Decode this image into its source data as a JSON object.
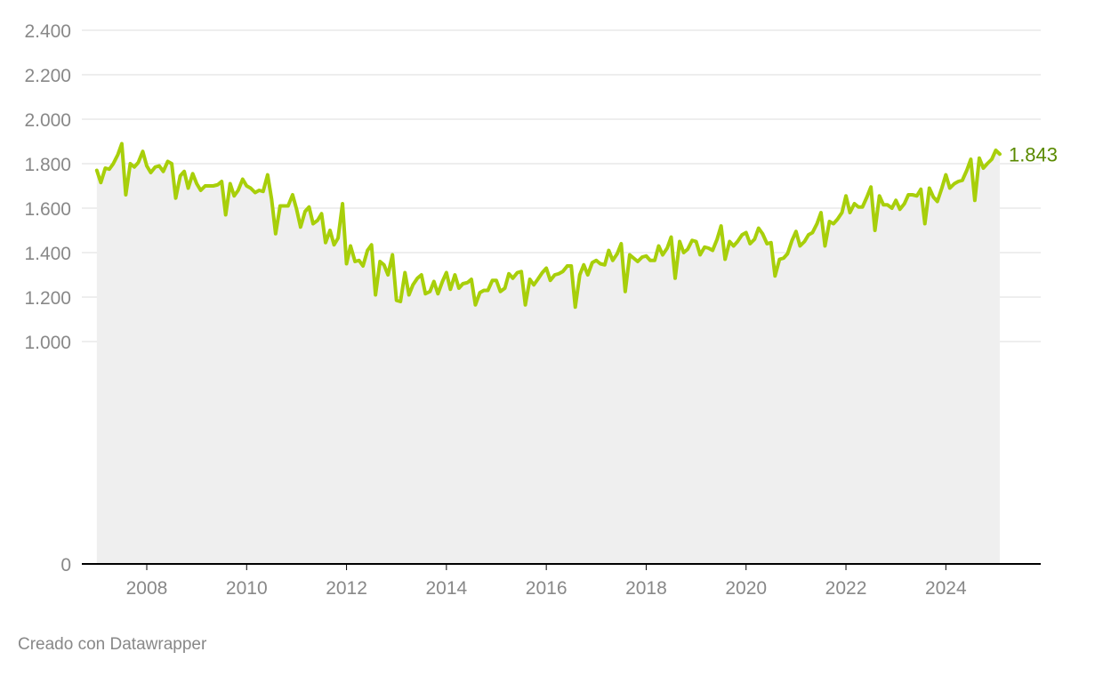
{
  "credit": "Creado con Datawrapper",
  "colors": {
    "line": "#a8cf0a",
    "area": "#efefef",
    "grid": "#dddddd",
    "axis": "#000000",
    "label": "#888888",
    "end_label": "#5a8a00"
  },
  "chart_data": {
    "type": "area",
    "title": "",
    "xlabel": "",
    "ylabel": "",
    "xlim": [
      2006.7,
      2025.9
    ],
    "ylim": [
      0,
      2400
    ],
    "y_ticks": [
      {
        "value": 0,
        "label": "0"
      },
      {
        "value": 1000,
        "label": "1.000"
      },
      {
        "value": 1200,
        "label": "1.200"
      },
      {
        "value": 1400,
        "label": "1.400"
      },
      {
        "value": 1600,
        "label": "1.600"
      },
      {
        "value": 1800,
        "label": "1.800"
      },
      {
        "value": 2000,
        "label": "2.000"
      },
      {
        "value": 2200,
        "label": "2.200"
      },
      {
        "value": 2400,
        "label": "2.400"
      }
    ],
    "x_ticks": [
      {
        "value": 2008,
        "label": "2008"
      },
      {
        "value": 2010,
        "label": "2010"
      },
      {
        "value": 2012,
        "label": "2012"
      },
      {
        "value": 2014,
        "label": "2014"
      },
      {
        "value": 2016,
        "label": "2016"
      },
      {
        "value": 2018,
        "label": "2018"
      },
      {
        "value": 2020,
        "label": "2020"
      },
      {
        "value": 2022,
        "label": "2022"
      },
      {
        "value": 2024,
        "label": "2024"
      }
    ],
    "grid": true,
    "last_value_label": "1.843",
    "series": [
      {
        "points": [
          [
            2007.0,
            1770
          ],
          [
            2007.08,
            1715
          ],
          [
            2007.17,
            1780
          ],
          [
            2007.25,
            1775
          ],
          [
            2007.33,
            1800
          ],
          [
            2007.42,
            1840
          ],
          [
            2007.5,
            1890
          ],
          [
            2007.58,
            1660
          ],
          [
            2007.67,
            1800
          ],
          [
            2007.75,
            1785
          ],
          [
            2007.83,
            1805
          ],
          [
            2007.92,
            1855
          ],
          [
            2008.0,
            1790
          ],
          [
            2008.08,
            1760
          ],
          [
            2008.17,
            1785
          ],
          [
            2008.25,
            1790
          ],
          [
            2008.33,
            1765
          ],
          [
            2008.42,
            1810
          ],
          [
            2008.5,
            1800
          ],
          [
            2008.58,
            1645
          ],
          [
            2008.67,
            1745
          ],
          [
            2008.75,
            1765
          ],
          [
            2008.83,
            1690
          ],
          [
            2008.92,
            1755
          ],
          [
            2009.0,
            1710
          ],
          [
            2009.08,
            1680
          ],
          [
            2009.17,
            1700
          ],
          [
            2009.25,
            1700
          ],
          [
            2009.33,
            1700
          ],
          [
            2009.42,
            1705
          ],
          [
            2009.5,
            1720
          ],
          [
            2009.58,
            1570
          ],
          [
            2009.67,
            1710
          ],
          [
            2009.75,
            1655
          ],
          [
            2009.83,
            1680
          ],
          [
            2009.92,
            1730
          ],
          [
            2010.0,
            1700
          ],
          [
            2010.08,
            1690
          ],
          [
            2010.17,
            1670
          ],
          [
            2010.25,
            1680
          ],
          [
            2010.33,
            1675
          ],
          [
            2010.42,
            1750
          ],
          [
            2010.5,
            1640
          ],
          [
            2010.58,
            1485
          ],
          [
            2010.67,
            1610
          ],
          [
            2010.75,
            1610
          ],
          [
            2010.83,
            1610
          ],
          [
            2010.92,
            1660
          ],
          [
            2011.0,
            1595
          ],
          [
            2011.08,
            1515
          ],
          [
            2011.17,
            1585
          ],
          [
            2011.25,
            1605
          ],
          [
            2011.33,
            1530
          ],
          [
            2011.42,
            1545
          ],
          [
            2011.5,
            1575
          ],
          [
            2011.58,
            1445
          ],
          [
            2011.67,
            1500
          ],
          [
            2011.75,
            1435
          ],
          [
            2011.83,
            1465
          ],
          [
            2011.92,
            1620
          ],
          [
            2012.0,
            1350
          ],
          [
            2012.08,
            1430
          ],
          [
            2012.17,
            1360
          ],
          [
            2012.25,
            1365
          ],
          [
            2012.33,
            1340
          ],
          [
            2012.42,
            1410
          ],
          [
            2012.5,
            1435
          ],
          [
            2012.58,
            1210
          ],
          [
            2012.67,
            1360
          ],
          [
            2012.75,
            1345
          ],
          [
            2012.83,
            1300
          ],
          [
            2012.92,
            1390
          ],
          [
            2013.0,
            1185
          ],
          [
            2013.08,
            1180
          ],
          [
            2013.17,
            1310
          ],
          [
            2013.25,
            1210
          ],
          [
            2013.33,
            1255
          ],
          [
            2013.42,
            1285
          ],
          [
            2013.5,
            1300
          ],
          [
            2013.58,
            1215
          ],
          [
            2013.67,
            1225
          ],
          [
            2013.75,
            1270
          ],
          [
            2013.83,
            1215
          ],
          [
            2013.92,
            1270
          ],
          [
            2014.0,
            1310
          ],
          [
            2014.08,
            1235
          ],
          [
            2014.17,
            1300
          ],
          [
            2014.25,
            1240
          ],
          [
            2014.33,
            1260
          ],
          [
            2014.42,
            1265
          ],
          [
            2014.5,
            1280
          ],
          [
            2014.58,
            1165
          ],
          [
            2014.67,
            1220
          ],
          [
            2014.75,
            1230
          ],
          [
            2014.83,
            1230
          ],
          [
            2014.92,
            1275
          ],
          [
            2015.0,
            1275
          ],
          [
            2015.08,
            1225
          ],
          [
            2015.17,
            1240
          ],
          [
            2015.25,
            1305
          ],
          [
            2015.33,
            1285
          ],
          [
            2015.42,
            1310
          ],
          [
            2015.5,
            1315
          ],
          [
            2015.58,
            1165
          ],
          [
            2015.67,
            1280
          ],
          [
            2015.75,
            1255
          ],
          [
            2015.83,
            1280
          ],
          [
            2015.92,
            1310
          ],
          [
            2016.0,
            1330
          ],
          [
            2016.08,
            1275
          ],
          [
            2016.17,
            1300
          ],
          [
            2016.25,
            1305
          ],
          [
            2016.33,
            1315
          ],
          [
            2016.42,
            1340
          ],
          [
            2016.5,
            1340
          ],
          [
            2016.58,
            1155
          ],
          [
            2016.67,
            1300
          ],
          [
            2016.75,
            1345
          ],
          [
            2016.83,
            1300
          ],
          [
            2016.92,
            1355
          ],
          [
            2017.0,
            1365
          ],
          [
            2017.08,
            1350
          ],
          [
            2017.17,
            1345
          ],
          [
            2017.25,
            1410
          ],
          [
            2017.33,
            1365
          ],
          [
            2017.42,
            1395
          ],
          [
            2017.5,
            1440
          ],
          [
            2017.58,
            1225
          ],
          [
            2017.67,
            1390
          ],
          [
            2017.75,
            1375
          ],
          [
            2017.83,
            1360
          ],
          [
            2017.92,
            1380
          ],
          [
            2018.0,
            1385
          ],
          [
            2018.08,
            1365
          ],
          [
            2018.17,
            1365
          ],
          [
            2018.25,
            1430
          ],
          [
            2018.33,
            1390
          ],
          [
            2018.42,
            1420
          ],
          [
            2018.5,
            1470
          ],
          [
            2018.58,
            1285
          ],
          [
            2018.67,
            1450
          ],
          [
            2018.75,
            1400
          ],
          [
            2018.83,
            1415
          ],
          [
            2018.92,
            1455
          ],
          [
            2019.0,
            1450
          ],
          [
            2019.08,
            1390
          ],
          [
            2019.17,
            1425
          ],
          [
            2019.25,
            1420
          ],
          [
            2019.33,
            1410
          ],
          [
            2019.42,
            1460
          ],
          [
            2019.5,
            1520
          ],
          [
            2019.58,
            1370
          ],
          [
            2019.67,
            1450
          ],
          [
            2019.75,
            1430
          ],
          [
            2019.83,
            1450
          ],
          [
            2019.92,
            1480
          ],
          [
            2020.0,
            1490
          ],
          [
            2020.08,
            1440
          ],
          [
            2020.17,
            1460
          ],
          [
            2020.25,
            1510
          ],
          [
            2020.33,
            1485
          ],
          [
            2020.42,
            1440
          ],
          [
            2020.5,
            1445
          ],
          [
            2020.58,
            1295
          ],
          [
            2020.67,
            1370
          ],
          [
            2020.75,
            1375
          ],
          [
            2020.83,
            1395
          ],
          [
            2020.92,
            1455
          ],
          [
            2021.0,
            1495
          ],
          [
            2021.08,
            1430
          ],
          [
            2021.17,
            1450
          ],
          [
            2021.25,
            1480
          ],
          [
            2021.33,
            1490
          ],
          [
            2021.42,
            1530
          ],
          [
            2021.5,
            1580
          ],
          [
            2021.58,
            1430
          ],
          [
            2021.67,
            1540
          ],
          [
            2021.75,
            1530
          ],
          [
            2021.83,
            1550
          ],
          [
            2021.92,
            1580
          ],
          [
            2022.0,
            1655
          ],
          [
            2022.08,
            1580
          ],
          [
            2022.17,
            1620
          ],
          [
            2022.25,
            1605
          ],
          [
            2022.33,
            1605
          ],
          [
            2022.42,
            1650
          ],
          [
            2022.5,
            1695
          ],
          [
            2022.58,
            1500
          ],
          [
            2022.67,
            1655
          ],
          [
            2022.75,
            1615
          ],
          [
            2022.83,
            1615
          ],
          [
            2022.92,
            1600
          ],
          [
            2023.0,
            1635
          ],
          [
            2023.08,
            1595
          ],
          [
            2023.17,
            1620
          ],
          [
            2023.25,
            1660
          ],
          [
            2023.33,
            1660
          ],
          [
            2023.42,
            1655
          ],
          [
            2023.5,
            1685
          ],
          [
            2023.58,
            1530
          ],
          [
            2023.67,
            1690
          ],
          [
            2023.75,
            1650
          ],
          [
            2023.83,
            1630
          ],
          [
            2023.92,
            1690
          ],
          [
            2024.0,
            1750
          ],
          [
            2024.08,
            1690
          ],
          [
            2024.17,
            1710
          ],
          [
            2024.25,
            1720
          ],
          [
            2024.33,
            1725
          ],
          [
            2024.42,
            1770
          ],
          [
            2024.5,
            1820
          ],
          [
            2024.58,
            1635
          ],
          [
            2024.67,
            1825
          ],
          [
            2024.75,
            1780
          ],
          [
            2024.83,
            1800
          ],
          [
            2024.92,
            1820
          ],
          [
            2025.0,
            1860
          ],
          [
            2025.08,
            1843
          ]
        ]
      }
    ]
  }
}
